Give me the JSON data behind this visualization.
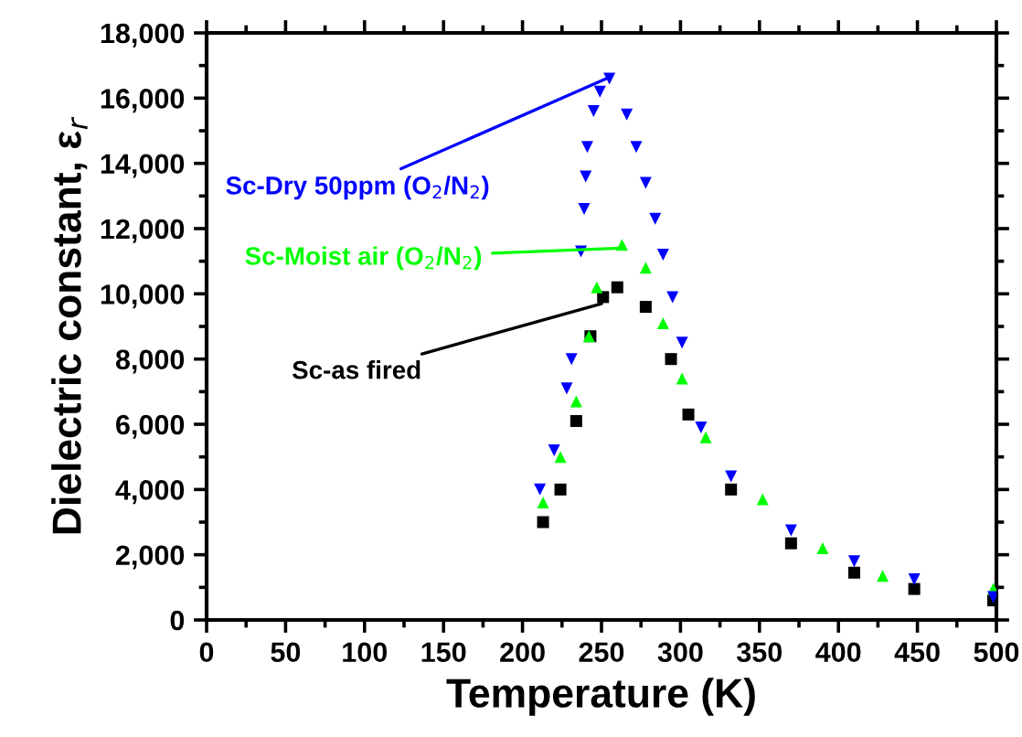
{
  "chart_data": {
    "type": "scatter",
    "xlabel": "Temperature (K)",
    "ylabel": "Dielectric constant, ε$_{r}$",
    "xlim": [
      0,
      500
    ],
    "xticks": [
      0,
      50,
      100,
      150,
      200,
      250,
      300,
      350,
      400,
      450,
      500
    ],
    "ylim": [
      0,
      18000
    ],
    "yticks": [
      {
        "value": 0,
        "label": "0"
      },
      {
        "value": 2000,
        "label": "2,000"
      },
      {
        "value": 4000,
        "label": "4,000"
      },
      {
        "value": 6000,
        "label": "6,000"
      },
      {
        "value": 8000,
        "label": "8,000"
      },
      {
        "value": 10000,
        "label": "10,000"
      },
      {
        "value": 12000,
        "label": "12,000"
      },
      {
        "value": 14000,
        "label": "14,000"
      },
      {
        "value": 16000,
        "label": "16,000"
      },
      {
        "value": 18000,
        "label": "18,000"
      }
    ],
    "grid": false,
    "series": [
      {
        "color": "#000000",
        "marker": "square",
        "x": [
          213,
          224,
          234,
          243,
          251,
          260,
          278,
          294,
          305,
          332,
          370,
          410,
          448,
          498
        ],
        "values": [
          3000,
          4000,
          6100,
          8700,
          9900,
          10200,
          9600,
          8000,
          6300,
          4000,
          2350,
          1450,
          950,
          600
        ]
      },
      {
        "color": "#00ff00",
        "marker": "triangle",
        "x": [
          213,
          224,
          234,
          242,
          247,
          263,
          278,
          289,
          301,
          316,
          352,
          390,
          428,
          498
        ],
        "values": [
          3600,
          5000,
          6700,
          8700,
          10200,
          11500,
          10800,
          9100,
          7400,
          5600,
          3700,
          2200,
          1350,
          950
        ]
      },
      {
        "color": "#0000ff",
        "marker": "triangle_down",
        "x": [
          211,
          220,
          228,
          231,
          237,
          239,
          240,
          241,
          245,
          249,
          255,
          266,
          272,
          278,
          284,
          289,
          295,
          301,
          313,
          332,
          370,
          410,
          448,
          498
        ],
        "values": [
          4000,
          5200,
          7100,
          8000,
          11300,
          12600,
          13600,
          14500,
          15600,
          16200,
          16600,
          15500,
          14500,
          13400,
          12300,
          11200,
          9900,
          8500,
          5900,
          4400,
          2750,
          1800,
          1250,
          700
        ]
      }
    ],
    "annotations": [
      {
        "text": "Sc-as fired",
        "x": 250,
        "y": 9700
      },
      {
        "text": "Sc-Moist air (O$_{2}$/N$_{2}$)",
        "x": 262,
        "y": 11400
      },
      {
        "text": "Sc-Dry 50ppm (O$_{2}$/N$_{2}$)",
        "x": 253,
        "y": 16600
      }
    ]
  }
}
